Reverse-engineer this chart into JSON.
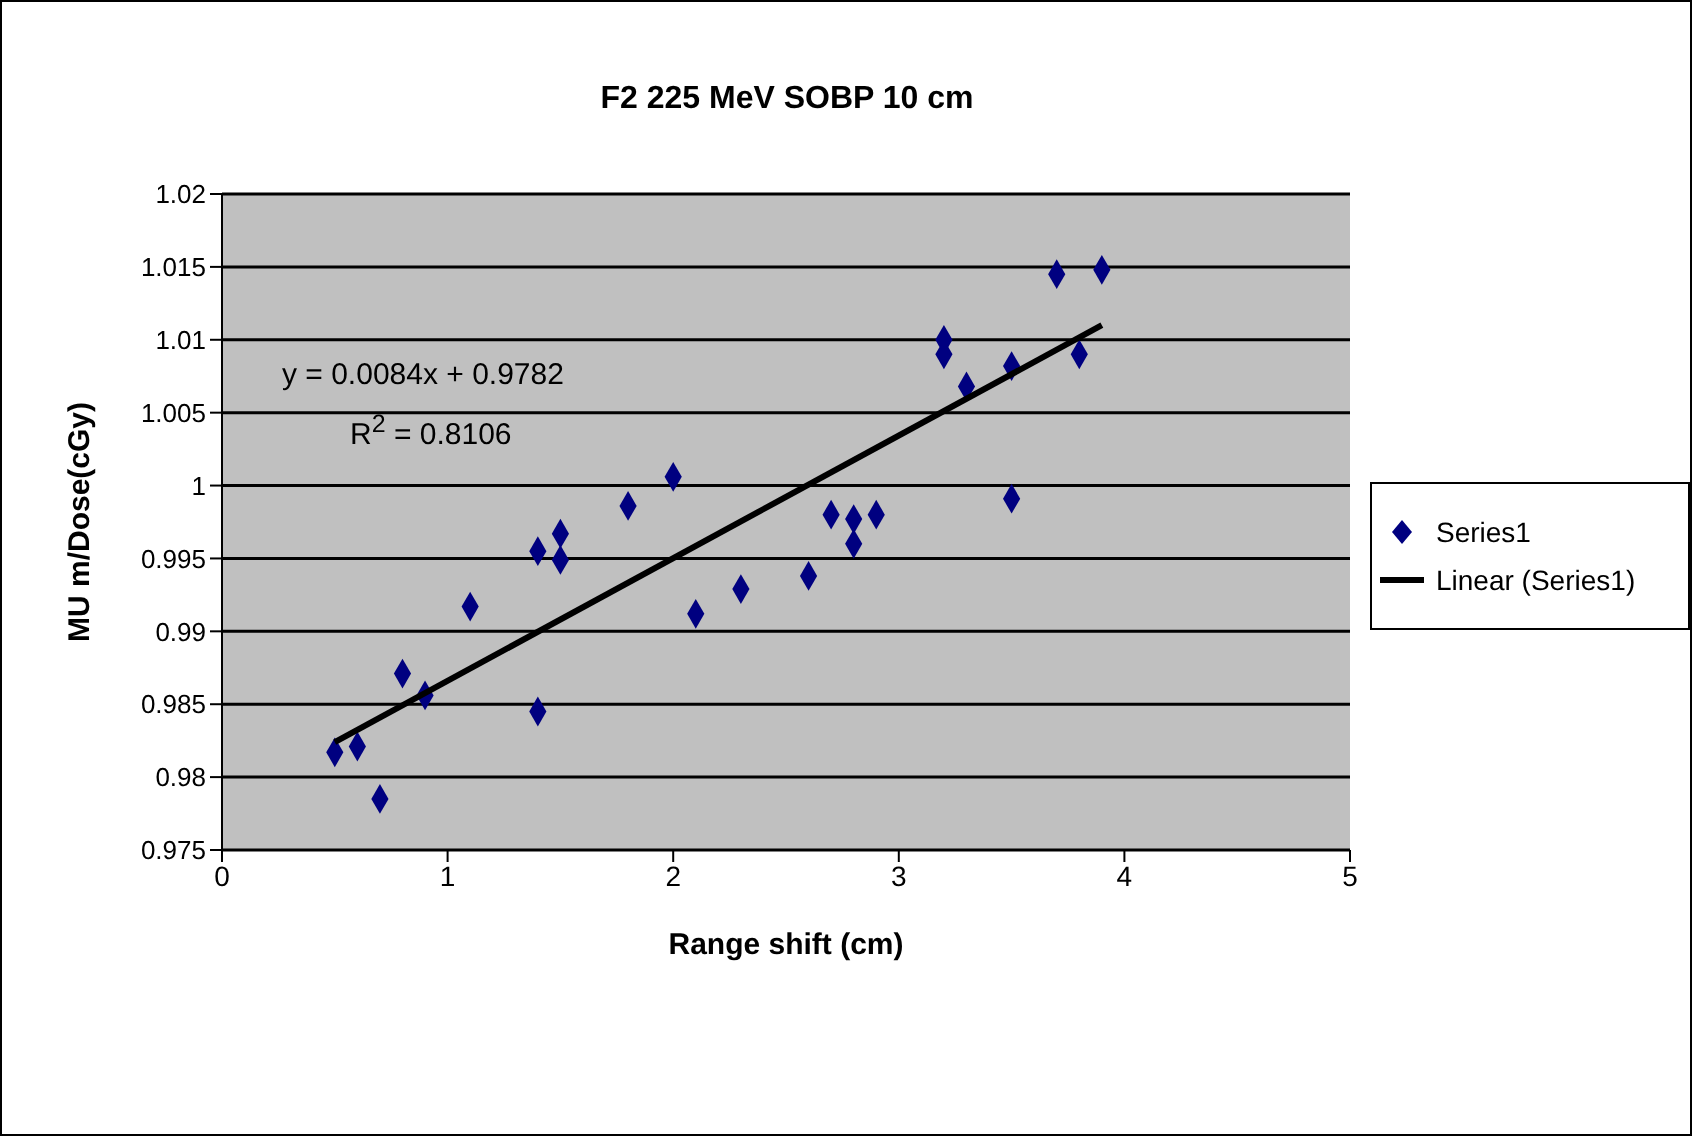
{
  "chart_data": {
    "type": "scatter",
    "title": "F2 225 MeV SOBP 10 cm",
    "xlabel": "Range shift (cm)",
    "ylabel": "MU m/Dose(cGy)",
    "xlim": [
      0,
      5
    ],
    "xticks": [
      0,
      1,
      2,
      3,
      4,
      5
    ],
    "ylim": [
      0.975,
      1.02
    ],
    "yticks": [
      0.975,
      0.98,
      0.985,
      0.99,
      0.995,
      1,
      1.005,
      1.01,
      1.015,
      1.02
    ],
    "grid": "y",
    "legend": "right",
    "annotations": [
      "y = 0.0084x + 0.9782",
      "R$^{2}$ = 0.8106"
    ],
    "series": [
      {
        "name": "Series1",
        "marker": "diamond",
        "color": "#000080",
        "x": [
          0.5,
          0.6,
          0.7,
          0.8,
          0.9,
          1.1,
          1.4,
          1.4,
          1.5,
          1.5,
          1.8,
          2.0,
          2.1,
          2.3,
          2.6,
          2.7,
          2.8,
          2.8,
          2.9,
          3.2,
          3.2,
          3.3,
          3.5,
          3.5,
          3.7,
          3.8,
          3.9
        ],
        "values": [
          0.9817,
          0.9821,
          0.9785,
          0.9871,
          0.9856,
          0.9917,
          0.9955,
          0.9845,
          0.9967,
          0.9949,
          0.9986,
          1.0006,
          0.9912,
          0.9929,
          0.9938,
          0.998,
          0.9977,
          0.996,
          0.998,
          1.01,
          1.009,
          1.0068,
          1.0082,
          0.9991,
          1.0145,
          1.009,
          1.0148
        ]
      },
      {
        "name": "Linear (Series1)",
        "type": "line",
        "marker": "none",
        "color": "#000000",
        "x": [
          0.5,
          3.9
        ],
        "values": [
          0.9824,
          1.011
        ]
      }
    ]
  }
}
